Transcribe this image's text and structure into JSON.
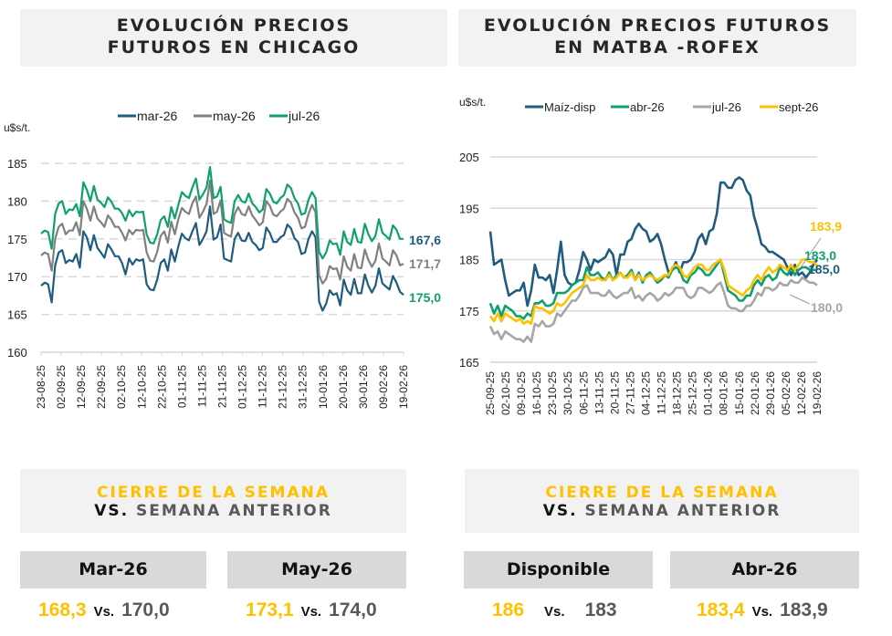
{
  "left_panel": {
    "title_line1": "EVOLUCIÓN PRECIOS",
    "title_line2": "FUTUROS EN CHICAGO",
    "cierre_line1": "CIERRE DE LA SEMANA",
    "cierre_vs": "VS.",
    "cierre_line2": " SEMANA ANTERIOR",
    "cards": [
      {
        "label": "Mar-26",
        "current": "168,3",
        "vs": "Vs.",
        "previous": "170,0"
      },
      {
        "label": "May-26",
        "current": "173,1",
        "vs": "Vs.",
        "previous": "174,0"
      }
    ]
  },
  "right_panel": {
    "title_line1": "EVOLUCIÓN PRECIOS FUTUROS",
    "title_line2": "EN MATBA -ROFEX",
    "cierre_line1": "CIERRE DE LA SEMANA",
    "cierre_vs": "VS.",
    "cierre_line2": " SEMANA ANTERIOR",
    "cards": [
      {
        "label": "Disponible",
        "current": "186",
        "vs": "Vs.",
        "previous": "183"
      },
      {
        "label": "Abr-26",
        "current": "183,4",
        "vs": "Vs.",
        "previous": "183,9"
      }
    ]
  },
  "chart_data": [
    {
      "type": "line",
      "title": "Evolución precios futuros en Chicago",
      "ylabel": "u$s/t.",
      "xlabel": "",
      "ylim": [
        160,
        185
      ],
      "yticks": [
        160,
        165,
        170,
        175,
        180,
        185
      ],
      "grid": true,
      "legend_position": "top",
      "x_ticks": [
        "23-08-25",
        "02-09-25",
        "12-09-25",
        "22-09-25",
        "02-10-25",
        "12-10-25",
        "22-10-25",
        "01-11-25",
        "11-11-25",
        "21-11-25",
        "01-12-25",
        "11-12-25",
        "21-12-25",
        "31-12-25",
        "10-01-26",
        "20-01-26",
        "30-01-26",
        "09-02-26",
        "19-02-26"
      ],
      "series": [
        {
          "name": "mar-26",
          "color": "#1f5c80",
          "end_label": "167,6",
          "values": [
            168.8,
            169.2,
            169.0,
            166.6,
            171.5,
            173.2,
            173.5,
            171.8,
            172.2,
            172.0,
            173.0,
            171.2,
            176.0,
            175.2,
            173.5,
            175.5,
            173.8,
            173.2,
            172.5,
            174.3,
            173.6,
            172.7,
            172.7,
            171.8,
            170.3,
            172.4,
            171.6,
            172.3,
            172.1,
            172.3,
            169.0,
            168.3,
            168.2,
            169.6,
            171.8,
            172.3,
            170.8,
            173.6,
            172.0,
            174.0,
            175.7,
            175.1,
            174.8,
            176.0,
            177.1,
            174.2,
            175.0,
            176.0,
            179.3,
            174.9,
            175.2,
            176.9,
            172.4,
            172.2,
            172.0,
            175.0,
            175.8,
            174.8,
            174.7,
            175.8,
            174.6,
            174.2,
            173.5,
            173.8,
            176.5,
            175.8,
            174.6,
            174.6,
            175.2,
            175.5,
            176.9,
            176.4,
            175.1,
            174.6,
            173.0,
            173.2,
            175.0,
            176.0,
            175.2,
            166.7,
            165.5,
            166.4,
            168.2,
            167.6,
            167.8,
            166.2,
            169.6,
            168.2,
            167.6,
            169.7,
            167.8,
            167.8,
            170.3,
            168.8,
            167.9,
            168.8,
            171.1,
            169.1,
            168.7,
            168.3,
            170.1,
            169.2,
            168.0,
            167.6
          ]
        },
        {
          "name": "may-26",
          "color": "#808080",
          "end_label": "171,7",
          "values": [
            172.8,
            173.2,
            173.0,
            170.8,
            175.0,
            176.6,
            177.0,
            175.6,
            176.1,
            176.1,
            177.2,
            175.5,
            180.0,
            179.0,
            177.4,
            179.3,
            177.7,
            177.2,
            176.6,
            178.1,
            177.5,
            176.6,
            176.6,
            175.8,
            174.8,
            176.2,
            175.6,
            176.2,
            176.1,
            176.2,
            173.2,
            172.1,
            172.0,
            173.3,
            175.4,
            176.0,
            174.5,
            177.3,
            175.6,
            177.6,
            179.1,
            178.6,
            178.3,
            179.7,
            180.6,
            177.8,
            178.6,
            179.6,
            182.7,
            178.3,
            178.6,
            180.1,
            175.8,
            175.5,
            175.3,
            178.3,
            179.2,
            178.3,
            178.1,
            179.3,
            178.1,
            177.5,
            176.8,
            177.2,
            180.0,
            179.4,
            178.2,
            178.0,
            178.6,
            179.0,
            180.3,
            179.8,
            178.5,
            177.8,
            176.4,
            176.6,
            178.3,
            179.5,
            178.5,
            170.2,
            169.1,
            169.7,
            171.4,
            171.0,
            171.1,
            169.6,
            172.7,
            171.3,
            170.8,
            173.0,
            171.2,
            171.1,
            173.6,
            172.2,
            171.3,
            172.1,
            174.4,
            172.4,
            172.0,
            171.5,
            173.5,
            172.8,
            171.5,
            171.7
          ]
        },
        {
          "name": "jul-26",
          "color": "#10a070",
          "end_label": "175,0",
          "values": [
            175.7,
            176.1,
            175.9,
            173.7,
            178.3,
            179.7,
            180.0,
            178.3,
            178.9,
            178.8,
            179.6,
            178.0,
            182.5,
            181.5,
            180.0,
            182.0,
            180.2,
            179.8,
            179.2,
            180.5,
            179.9,
            179.0,
            179.0,
            178.4,
            177.4,
            178.8,
            178.0,
            178.6,
            178.5,
            178.6,
            175.6,
            174.5,
            174.4,
            175.6,
            177.5,
            178.0,
            176.6,
            179.2,
            177.7,
            179.5,
            181.2,
            180.7,
            180.4,
            181.8,
            183.0,
            180.2,
            180.9,
            181.8,
            184.5,
            180.4,
            180.6,
            181.9,
            177.6,
            177.3,
            177.1,
            180.0,
            180.8,
            180.0,
            179.8,
            181.0,
            179.7,
            179.2,
            178.5,
            178.9,
            181.6,
            181.0,
            179.9,
            179.7,
            180.4,
            180.8,
            182.2,
            181.7,
            180.4,
            179.7,
            178.2,
            178.4,
            180.2,
            181.2,
            180.4,
            173.3,
            172.4,
            173.2,
            174.8,
            174.3,
            174.4,
            172.9,
            176.0,
            174.6,
            174.2,
            176.3,
            174.6,
            174.5,
            177.0,
            175.6,
            174.7,
            175.4,
            177.6,
            175.8,
            175.4,
            174.9,
            176.8,
            176.2,
            175.0,
            175.0
          ]
        }
      ]
    },
    {
      "type": "line",
      "title": "Evolución precios futuros en MATBA-ROFEX",
      "ylabel": "u$s/t.",
      "xlabel": "",
      "ylim": [
        165,
        205
      ],
      "yticks": [
        165,
        175,
        185,
        195,
        205
      ],
      "grid": true,
      "legend_position": "top",
      "x_ticks": [
        "25-09-25",
        "02-10-25",
        "09-10-25",
        "16-10-25",
        "23-10-25",
        "30-10-25",
        "06-11-25",
        "13-11-25",
        "20-11-25",
        "27-11-25",
        "04-12-25",
        "11-12-25",
        "18-12-25",
        "25-12-25",
        "01-01-26",
        "08-01-26",
        "15-01-26",
        "22-01-26",
        "29-01-26",
        "05-02-26",
        "12-02-26",
        "19-02-26"
      ],
      "series": [
        {
          "name": "Maíz-disp",
          "color": "#1f5c80",
          "end_label": "185,0",
          "values": [
            190.5,
            184.0,
            184.5,
            185.0,
            181.0,
            178.0,
            178.5,
            179.0,
            179.0,
            180.5,
            176.0,
            179.0,
            184.0,
            181.5,
            181.5,
            181.0,
            182.0,
            178.5,
            183.0,
            188.5,
            182.0,
            180.5,
            180.0,
            180.5,
            183.0,
            186.5,
            185.0,
            183.0,
            185.0,
            184.5,
            185.0,
            185.5,
            187.0,
            186.0,
            182.0,
            186.0,
            186.0,
            188.5,
            189.0,
            191.0,
            192.0,
            191.0,
            190.5,
            188.5,
            189.0,
            190.0,
            188.0,
            185.0,
            182.5,
            183.0,
            184.5,
            182.5,
            184.5,
            184.5,
            185.0,
            186.5,
            189.0,
            190.0,
            188.0,
            190.5,
            191.0,
            194.0,
            200.0,
            200.0,
            199.0,
            199.0,
            200.5,
            201.0,
            200.5,
            198.5,
            197.5,
            193.5,
            191.0,
            188.0,
            187.5,
            186.5,
            186.5,
            186.0,
            185.5,
            185.0,
            183.5,
            182.0,
            184.0,
            182.0,
            182.5,
            181.5,
            182.5,
            184.0,
            185.0
          ]
        },
        {
          "name": "abr-26",
          "color": "#10a070",
          "end_label": "183,0",
          "values": [
            176.5,
            174.5,
            176.0,
            174.0,
            176.0,
            175.5,
            175.0,
            174.0,
            174.0,
            173.5,
            174.5,
            174.0,
            176.5,
            176.5,
            177.0,
            176.0,
            176.0,
            176.5,
            178.5,
            178.5,
            178.5,
            179.0,
            180.0,
            180.5,
            181.0,
            181.0,
            183.5,
            182.0,
            182.0,
            182.5,
            181.5,
            181.0,
            182.5,
            181.0,
            182.0,
            182.5,
            181.5,
            182.0,
            183.0,
            181.0,
            182.5,
            180.5,
            182.0,
            182.5,
            181.5,
            180.5,
            181.0,
            182.0,
            181.5,
            183.0,
            183.5,
            183.0,
            181.0,
            180.5,
            182.0,
            182.5,
            183.5,
            183.0,
            182.0,
            182.0,
            183.0,
            184.0,
            185.0,
            182.0,
            179.0,
            178.5,
            178.0,
            177.0,
            177.0,
            178.0,
            178.0,
            180.0,
            181.0,
            180.0,
            181.5,
            182.0,
            181.0,
            181.5,
            183.5,
            182.5,
            182.0,
            183.5,
            182.0,
            183.0,
            183.5,
            183.5,
            183.0,
            183.0,
            183.0
          ]
        },
        {
          "name": "jul-26",
          "color": "#a6a6a6",
          "end_label": "180,0",
          "values": [
            172.0,
            170.5,
            171.0,
            169.5,
            171.0,
            170.5,
            170.0,
            169.5,
            169.5,
            169.0,
            170.0,
            169.0,
            172.5,
            172.0,
            173.0,
            172.0,
            172.0,
            172.5,
            174.5,
            174.0,
            175.0,
            176.0,
            177.0,
            177.0,
            178.0,
            179.5,
            180.0,
            178.5,
            178.5,
            178.5,
            178.0,
            178.0,
            179.0,
            178.0,
            177.5,
            178.0,
            178.5,
            178.5,
            179.5,
            177.5,
            178.0,
            177.0,
            178.0,
            178.5,
            178.0,
            177.0,
            177.5,
            178.5,
            178.0,
            178.5,
            179.5,
            179.5,
            179.5,
            178.0,
            177.5,
            178.0,
            179.5,
            179.5,
            179.0,
            178.5,
            179.0,
            180.0,
            180.5,
            178.5,
            176.0,
            175.5,
            175.5,
            175.0,
            175.0,
            176.0,
            176.0,
            177.0,
            178.5,
            178.0,
            179.5,
            179.5,
            179.0,
            179.5,
            180.5,
            180.0,
            180.0,
            181.0,
            180.5,
            180.5,
            181.5,
            181.0,
            180.5,
            180.5,
            180.0
          ]
        },
        {
          "name": "sept-26",
          "color": "#ffc000",
          "end_label": "183,9",
          "values": [
            174.0,
            173.0,
            174.5,
            173.0,
            174.5,
            174.0,
            173.5,
            173.0,
            173.5,
            172.5,
            173.0,
            172.5,
            176.0,
            175.5,
            175.5,
            175.0,
            174.5,
            175.0,
            176.5,
            176.0,
            176.5,
            177.5,
            178.5,
            179.0,
            179.5,
            180.0,
            182.0,
            181.0,
            181.0,
            181.5,
            181.0,
            181.0,
            182.0,
            181.0,
            181.5,
            182.5,
            181.5,
            181.5,
            182.5,
            181.0,
            182.0,
            181.0,
            181.5,
            182.0,
            181.5,
            181.0,
            181.5,
            182.0,
            182.0,
            183.5,
            184.0,
            183.5,
            182.0,
            181.5,
            182.5,
            183.5,
            184.0,
            184.0,
            183.0,
            183.0,
            184.0,
            184.5,
            185.0,
            183.0,
            180.0,
            179.5,
            179.0,
            178.5,
            178.0,
            179.0,
            179.5,
            181.0,
            182.0,
            181.0,
            182.5,
            183.5,
            182.5,
            183.0,
            184.0,
            183.5,
            183.0,
            184.0,
            183.0,
            184.0,
            185.0,
            185.0,
            184.5,
            184.5,
            183.9
          ]
        }
      ]
    }
  ]
}
